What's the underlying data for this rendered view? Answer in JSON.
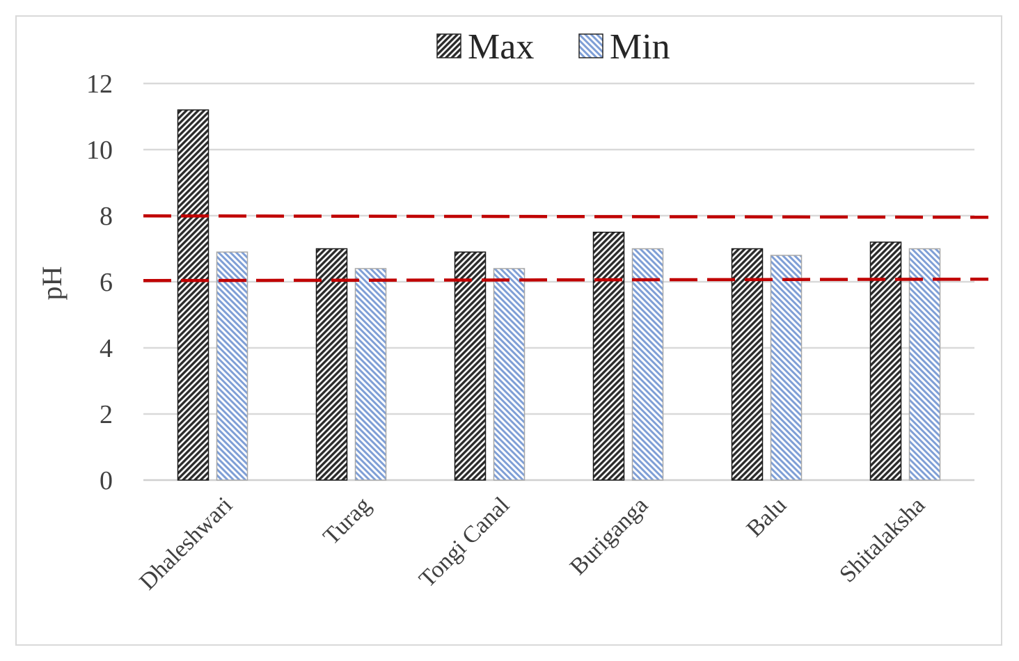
{
  "chart_data": {
    "type": "bar",
    "categories": [
      "Dhaleshwari",
      "Turag",
      "Tongi Canal",
      "Buriganga",
      "Balu",
      "Shitalaksha"
    ],
    "series": [
      {
        "name": "Max",
        "values": [
          11.2,
          7.0,
          6.9,
          7.5,
          7.0,
          7.2
        ],
        "color": "#2b2b2b",
        "pattern": "dark-diagonal-hatch"
      },
      {
        "name": "Min",
        "values": [
          6.9,
          6.4,
          6.4,
          7.0,
          6.8,
          7.0
        ],
        "color": "#8fa9db",
        "pattern": "blue-diagonal-hatch"
      }
    ],
    "ylabel": "pH",
    "xlabel": "",
    "ylim": [
      0,
      12
    ],
    "yticks": [
      "0",
      "2",
      "4",
      "6",
      "8",
      "10",
      "12"
    ],
    "grid": true,
    "legend_position": "top",
    "reference_lines": [
      {
        "value": 8.5,
        "style": "dashed",
        "color": "#c00000"
      },
      {
        "value": 6.5,
        "style": "dashed",
        "color": "#c00000"
      }
    ]
  }
}
